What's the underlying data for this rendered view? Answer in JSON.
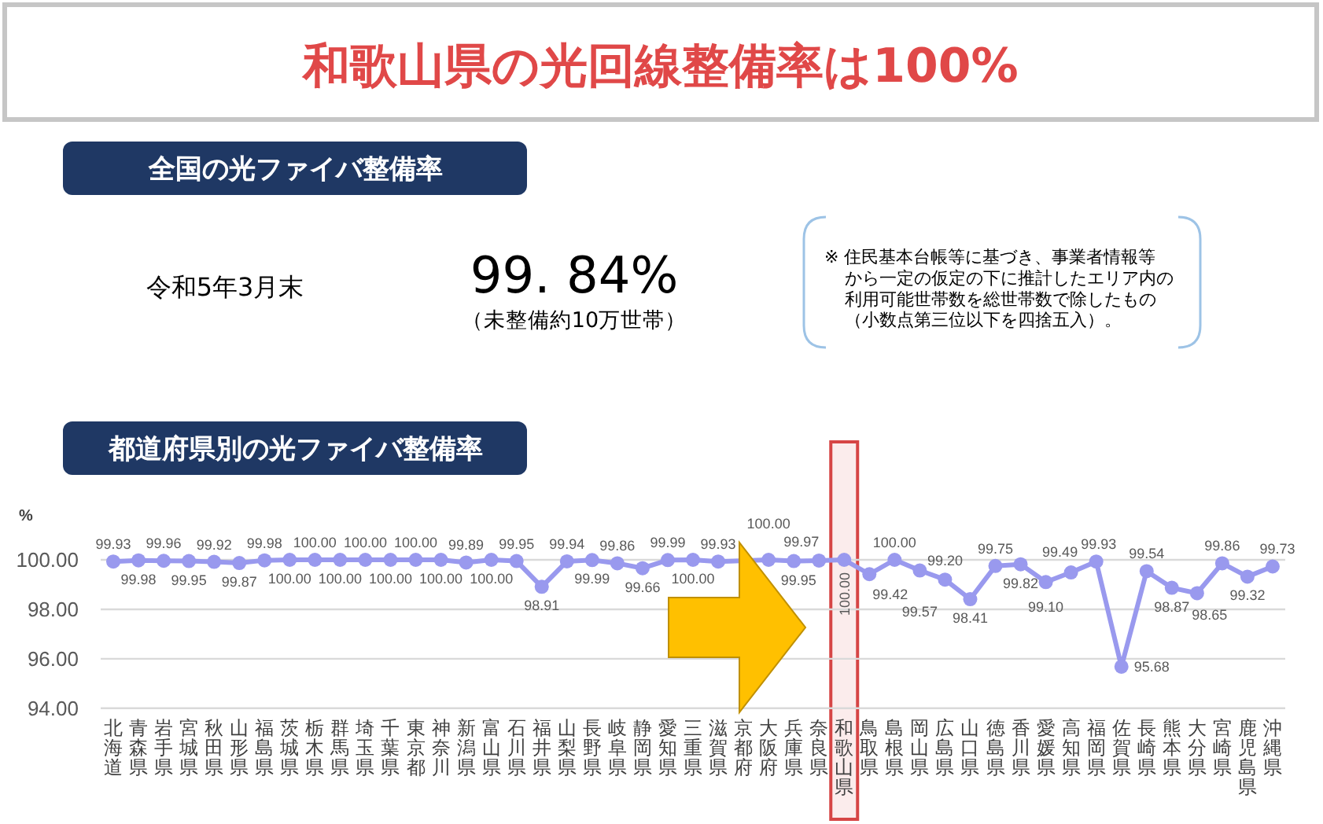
{
  "chart_data": {
    "type": "line",
    "title": "和歌山県の光回線整備率は100%",
    "subtitle": "都道府県別の光ファイバ整備率",
    "ylabel": "%",
    "categories": [
      "北海道",
      "青森県",
      "岩手県",
      "宮城県",
      "秋田県",
      "山形県",
      "福島県",
      "茨城県",
      "栃木県",
      "群馬県",
      "埼玉県",
      "千葉県",
      "東京都",
      "神奈川",
      "新潟県",
      "富山県",
      "石川県",
      "福井県",
      "山梨県",
      "長野県",
      "岐阜県",
      "静岡県",
      "愛知県",
      "三重県",
      "滋賀県",
      "京都府",
      "大阪府",
      "兵庫県",
      "奈良県",
      "和歌山県",
      "鳥取県",
      "島根県",
      "岡山県",
      "広島県",
      "山口県",
      "徳島県",
      "香川県",
      "愛媛県",
      "高知県",
      "福岡県",
      "佐賀県",
      "長崎県",
      "熊本県",
      "大分県",
      "宮崎県",
      "鹿児島県",
      "沖縄県"
    ],
    "series": [
      {
        "color": "#9999ee",
        "values": [
          99.93,
          99.98,
          99.96,
          99.95,
          99.92,
          99.87,
          99.98,
          100,
          100,
          100,
          100,
          100,
          100,
          100,
          99.89,
          100,
          99.95,
          98.91,
          99.94,
          99.99,
          99.86,
          99.66,
          99.99,
          100,
          99.93,
          null,
          100,
          99.95,
          99.97,
          100,
          99.42,
          100,
          99.57,
          99.2,
          98.41,
          99.75,
          99.82,
          99.1,
          99.49,
          99.93,
          95.68,
          99.54,
          98.87,
          98.65,
          99.86,
          99.32,
          99.73
        ],
        "value_labels": [
          "99.93",
          "99.98",
          "99.96",
          "99.95",
          "99.92",
          "99.87",
          "99.98",
          "100.00",
          "100.00",
          "100.00",
          "100.00",
          "100.00",
          "100.00",
          "100.00",
          "99.89",
          "100.00",
          "99.95",
          "98.91",
          "99.94",
          "99.99",
          "99.86",
          "99.66",
          "99.99",
          "100.00",
          "99.93",
          null,
          "100.00",
          "99.95",
          "99.97",
          "100.00",
          "99.42",
          "100.00",
          "99.57",
          "99.20",
          "98.41",
          "99.75",
          "99.82",
          "99.10",
          "99.49",
          "99.93",
          "95.68",
          "99.54",
          "98.87",
          "98.65",
          "99.86",
          "99.32",
          "99.73"
        ]
      }
    ],
    "ylim": [
      94,
      100
    ],
    "yticks": [
      {
        "value": 94,
        "label": "94.00"
      },
      {
        "value": 96,
        "label": "96.00"
      },
      {
        "value": 98,
        "label": "98.00"
      },
      {
        "value": 100,
        "label": "100.00"
      }
    ],
    "grid": "y",
    "marker": "circle",
    "bands": [
      {
        "axis": "x",
        "from": "和歌山県",
        "to": "和歌山県",
        "color": "#d64545"
      }
    ],
    "annotations": [
      "全国の光ファイバ整備率",
      "令和5年3月末",
      "99. 84%",
      "（未整備約10万世帯）",
      "※ 住民基本台帳等に基づき、事業者情報等から一定の仮定の下に推計したエリア内の利用可能世帯数を総世帯数で除したもの（小数点第三位以下を四捨五入）。"
    ]
  }
}
